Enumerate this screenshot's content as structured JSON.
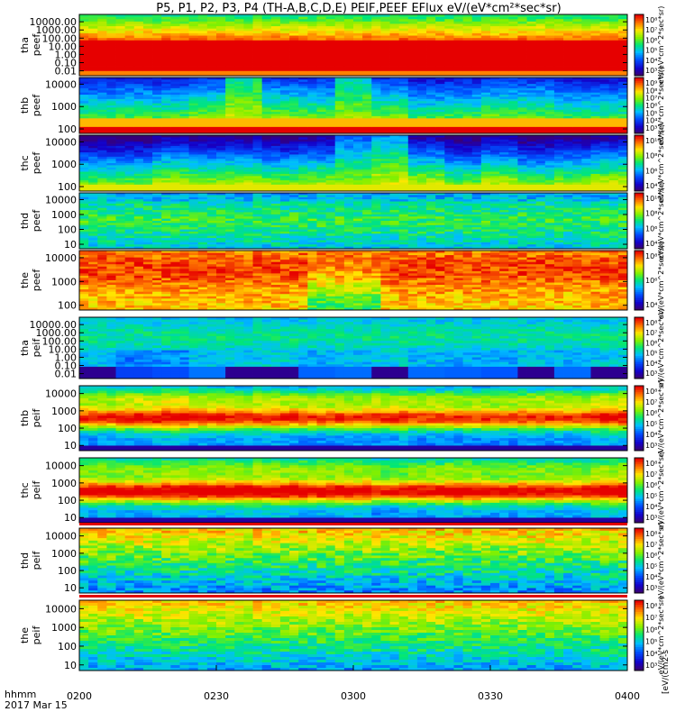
{
  "chart_data": {
    "type": "heatmap",
    "title": "P5, P1, P2, P3, P4 (TH-A,B,C,D,E) PEIF,PEEF EFlux eV/(eV*cm²*sec*sr)",
    "x_axis": {
      "label_line1": "hhmm",
      "label_line2": "2017 Mar 15",
      "ticks": [
        "0200",
        "0230",
        "0300",
        "0330",
        "0400"
      ],
      "range": [
        "02:00",
        "04:00"
      ]
    },
    "colorbar_unit_label": "[eV/(cm2-s",
    "colorbar_axis_text": "eV/(eV*cm^2*sec*sr)",
    "panels": [
      {
        "id": "tha-peef",
        "label1": "tha",
        "label2": "peef",
        "species": "electron",
        "yticks": [
          "10000.00",
          "1000.00",
          "100.00",
          "10.00",
          "1.00",
          "0.10",
          "0.01"
        ],
        "yrange_eV": [
          0.01,
          30000
        ],
        "cb_ticks": [
          "10⁸",
          "10⁷",
          "10⁶",
          "10⁵",
          "10⁴",
          "10³"
        ],
        "pattern": "tha-e"
      },
      {
        "id": "thb-peef",
        "label1": "thb",
        "label2": "peef",
        "species": "electron",
        "yticks": [
          "10000",
          "1000",
          "100"
        ],
        "yrange_eV": [
          5,
          30000
        ],
        "cb_ticks": [
          "10⁹",
          "10⁸",
          "10⁷",
          "10⁶",
          "10⁵",
          "10⁴",
          "10³"
        ],
        "pattern": "thb-e"
      },
      {
        "id": "thc-peef",
        "label1": "thc",
        "label2": "peef",
        "species": "electron",
        "yticks": [
          "10000",
          "1000",
          "100"
        ],
        "yrange_eV": [
          5,
          30000
        ],
        "cb_ticks": [
          "10¹⁰",
          "10⁸",
          "10⁶",
          "10⁴"
        ],
        "pattern": "thc-e"
      },
      {
        "id": "thd-peef",
        "label1": "thd",
        "label2": "peef",
        "species": "electron",
        "yticks": [
          "10000",
          "1000",
          "100",
          "10"
        ],
        "yrange_eV": [
          5,
          30000
        ],
        "cb_ticks": [
          "10¹⁰",
          "10⁸",
          "10⁶",
          "10⁴"
        ],
        "pattern": "thd-e"
      },
      {
        "id": "the-peef",
        "label1": "the",
        "label2": "peef",
        "species": "electron",
        "yticks": [
          "10000",
          "1000",
          "100"
        ],
        "yrange_eV": [
          5,
          30000
        ],
        "cb_ticks": [
          "10⁸",
          "10⁶",
          "10⁴"
        ],
        "pattern": "the-e"
      },
      {
        "id": "tha-peif",
        "label1": "tha",
        "label2": "peif",
        "species": "ion",
        "yticks": [
          "10000.00",
          "1000.00",
          "100.00",
          "10.00",
          "1.00",
          "0.10",
          "0.01"
        ],
        "yrange_eV": [
          0.01,
          30000
        ],
        "cb_ticks": [
          "10⁸",
          "10⁷",
          "10⁶",
          "10⁵",
          "10⁴",
          "10³"
        ],
        "pattern": "tha-i"
      },
      {
        "id": "thb-peif",
        "label1": "thb",
        "label2": "peif",
        "species": "ion",
        "yticks": [
          "10000",
          "1000",
          "100",
          "10"
        ],
        "yrange_eV": [
          5,
          30000
        ],
        "cb_ticks": [
          "10⁸",
          "10⁷",
          "10⁶",
          "10⁵",
          "10⁴",
          "10³"
        ],
        "pattern": "thb-i"
      },
      {
        "id": "thc-peif",
        "label1": "thc",
        "label2": "peif",
        "species": "ion",
        "yticks": [
          "10000",
          "1000",
          "100",
          "10"
        ],
        "yrange_eV": [
          5,
          30000
        ],
        "cb_ticks": [
          "10⁸",
          "10⁷",
          "10⁶",
          "10⁵",
          "10⁴",
          "10³"
        ],
        "pattern": "thc-i"
      },
      {
        "id": "thd-peif",
        "label1": "thd",
        "label2": "peif",
        "species": "ion",
        "yticks": [
          "10000",
          "1000",
          "100",
          "10"
        ],
        "yrange_eV": [
          5,
          30000
        ],
        "cb_ticks": [
          "10⁸",
          "10⁷",
          "10⁶",
          "10⁵",
          "10⁴",
          "10³"
        ],
        "pattern": "thd-i"
      },
      {
        "id": "the-peif",
        "label1": "the",
        "label2": "peif",
        "species": "ion",
        "yticks": [
          "10000",
          "1000",
          "100",
          "10"
        ],
        "yrange_eV": [
          5,
          30000
        ],
        "cb_ticks": [
          "10⁸",
          "10⁷",
          "10⁶",
          "10⁵",
          "10⁴",
          "10³"
        ],
        "pattern": "the-i"
      }
    ]
  }
}
